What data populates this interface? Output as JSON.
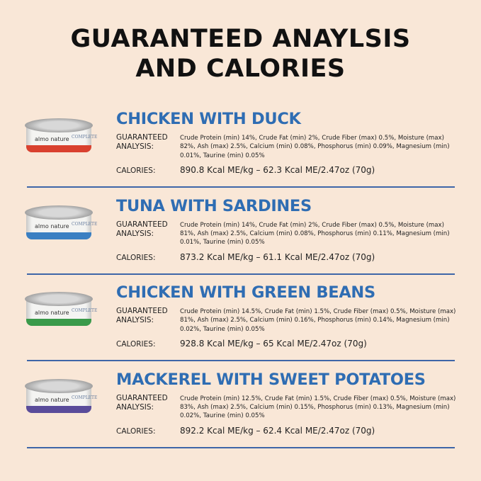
{
  "title": {
    "line1": "GUARANTEED ANAYLSIS",
    "line2": "AND CALORIES"
  },
  "labels": {
    "analysis": "GUARANTEED ANALYSIS:",
    "calories": "CALORIES:"
  },
  "can": {
    "brand": "almo nature",
    "line": "COMPLETE"
  },
  "products": [
    {
      "name": "CHICKEN WITH DUCK",
      "band_color": "#d9412f",
      "analysis": "Crude Protein (min) 14%, Crude Fat (min) 2%, Crude Fiber (max) 0.5%, Moisture (max) 82%, Ash (max) 2.5%, Calcium (min) 0.08%, Phosphorus (min) 0.09%, Magnesium (min) 0.01%, Taurine (min) 0.05%",
      "calories": "890.8 Kcal ME/kg – 62.3 Kcal ME/2.47oz (70g)"
    },
    {
      "name": "TUNA WITH SARDINES",
      "band_color": "#3a7fc2",
      "analysis": "Crude Protein (min) 14%, Crude Fat (min) 2%, Crude Fiber (max) 0.5%, Moisture (max) 81%, Ash (max) 2.5%, Calcium (min) 0.08%, Phosphorus (min) 0.11%, Magnesium (min) 0.01%, Taurine (min) 0.05%",
      "calories": "873.2 Kcal ME/kg – 61.1 Kcal ME/2.47oz (70g)"
    },
    {
      "name": "CHICKEN WITH GREEN BEANS",
      "band_color": "#3a9a4a",
      "analysis": "Crude Protein (min) 14.5%, Crude Fat (min) 1.5%, Crude Fiber (max) 0.5%, Moisture (max) 81%, Ash (max) 2.5%, Calcium (min) 0.16%, Phosphorus (min) 0.14%, Magnesium (min) 0.02%, Taurine (min) 0.05%",
      "calories": "928.8 Kcal ME/kg – 65 Kcal ME/2.47oz (70g)"
    },
    {
      "name": "MACKEREL WITH SWEET POTATOES",
      "band_color": "#5a4c9a",
      "analysis": "Crude Protein (min) 12.5%, Crude Fat (min) 1.5%, Crude Fiber (max) 0.5%, Moisture (max) 83%, Ash (max) 2.5%, Calcium (min) 0.15%, Phosphorus (min) 0.13%, Magnesium (min) 0.02%, Taurine (min) 0.05%",
      "calories": "892.2 Kcal ME/kg – 62.4 Kcal ME/2.47oz (70g)"
    }
  ]
}
